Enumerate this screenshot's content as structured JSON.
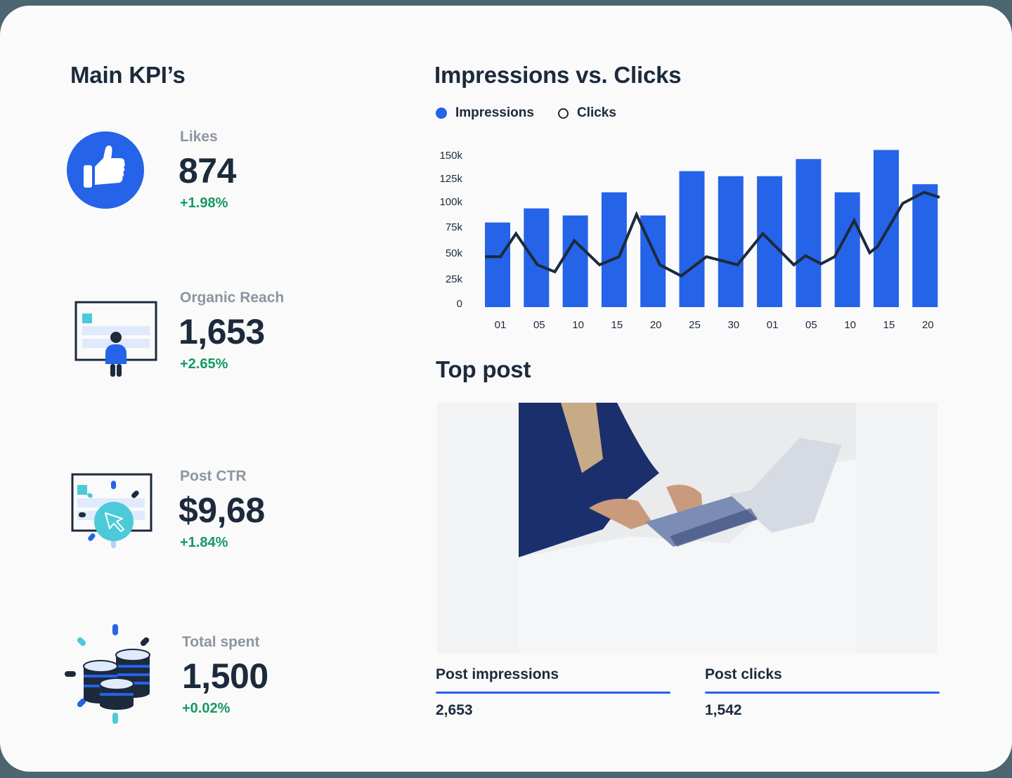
{
  "kpi_section": {
    "title": "Main KPI’s",
    "items": [
      {
        "label": "Likes",
        "value": "874",
        "delta": "+1.98%",
        "icon": "thumbs-up-icon"
      },
      {
        "label": "Organic Reach",
        "value": "1,653",
        "delta": "+2.65%",
        "icon": "presentation-person-icon"
      },
      {
        "label": "Post CTR",
        "value": "$9,68",
        "delta": "+1.84%",
        "icon": "cursor-click-icon"
      },
      {
        "label": "Total spent",
        "value": "1,500",
        "delta": "+0.02%",
        "icon": "coin-stack-icon"
      }
    ]
  },
  "chart_section": {
    "title": "Impressions vs. Clicks",
    "legend": [
      {
        "label": "Impressions",
        "style": "filled-dot",
        "color": "#2563e8"
      },
      {
        "label": "Clicks",
        "style": "hollow-dot",
        "color": "#1c2a3c"
      }
    ]
  },
  "chart_data": {
    "type": "bar+line",
    "title": "Impressions vs. Clicks",
    "xlabel": "",
    "ylabel": "",
    "ylim": [
      0,
      150000
    ],
    "yticks": [
      "0",
      "25k",
      "50k",
      "75k",
      "100k",
      "125k",
      "150k"
    ],
    "categories": [
      "01",
      "05",
      "10",
      "15",
      "20",
      "25",
      "30",
      "01",
      "05",
      "10",
      "15",
      "20"
    ],
    "grid": false,
    "legend_position": "top-left",
    "series": [
      {
        "name": "Impressions",
        "type": "bar",
        "color": "#2563e8",
        "values": [
          84000,
          98000,
          91000,
          114000,
          91000,
          135000,
          130000,
          130000,
          147000,
          114000,
          156000,
          122000
        ]
      },
      {
        "name": "Clicks",
        "type": "line",
        "color": "#1c2a3c",
        "points": [
          [
            0.0,
            50000
          ],
          [
            0.4,
            50000
          ],
          [
            0.8,
            73000
          ],
          [
            1.35,
            42000
          ],
          [
            1.8,
            35000
          ],
          [
            2.3,
            66000
          ],
          [
            2.95,
            42000
          ],
          [
            3.45,
            50000
          ],
          [
            3.9,
            92000
          ],
          [
            4.5,
            42000
          ],
          [
            5.05,
            31000
          ],
          [
            5.7,
            50000
          ],
          [
            6.5,
            42000
          ],
          [
            7.15,
            73000
          ],
          [
            7.95,
            42000
          ],
          [
            8.25,
            51000
          ],
          [
            8.65,
            43000
          ],
          [
            9.0,
            50000
          ],
          [
            9.5,
            86000
          ],
          [
            9.9,
            54000
          ],
          [
            10.1,
            60000
          ],
          [
            10.75,
            103000
          ],
          [
            11.3,
            114000
          ],
          [
            11.7,
            109000
          ]
        ]
      }
    ]
  },
  "top_post": {
    "title": "Top post",
    "image_alt": "Woman in blue sweater typing on laptop at white desk",
    "stats": [
      {
        "label": "Post impressions",
        "value": "2,653"
      },
      {
        "label": "Post clicks",
        "value": "1,542"
      }
    ]
  },
  "colors": {
    "accent": "#2563e8",
    "text": "#1c2a3c",
    "muted": "#8c95a0",
    "positive": "#139a63",
    "teal": "#4ccad8",
    "frame": "#4b6670"
  }
}
